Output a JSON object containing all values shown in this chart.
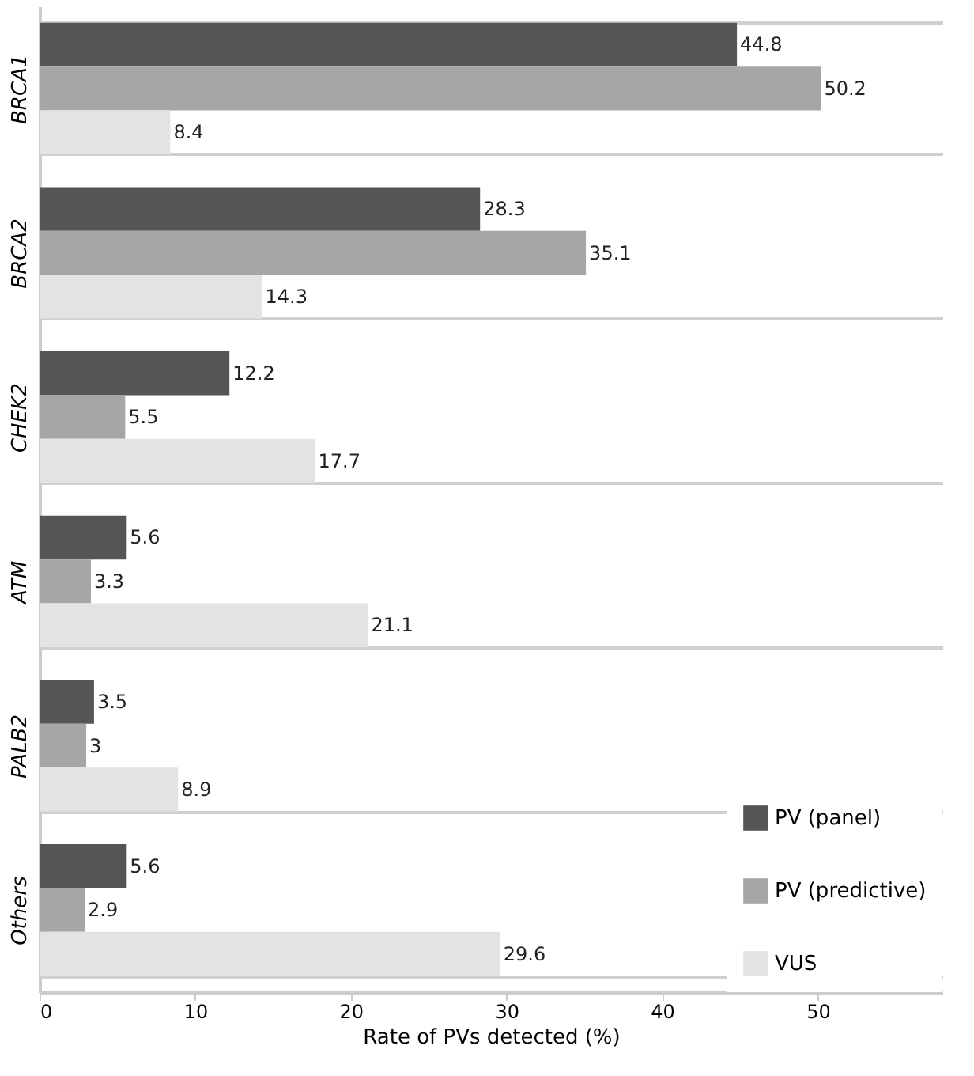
{
  "chart_data": {
    "type": "bar",
    "orientation": "horizontal",
    "xlabel": "Rate of PVs detected (%)",
    "categories": [
      "BRCA1",
      "BRCA2",
      "CHEK2",
      "ATM",
      "PALB2",
      "Others"
    ],
    "series": [
      {
        "name": "PV (panel)",
        "color": "#555555",
        "values": [
          44.8,
          28.3,
          12.2,
          5.6,
          3.5,
          5.6
        ]
      },
      {
        "name": "PV (predictive)",
        "color": "#a6a6a6",
        "values": [
          50.2,
          35.1,
          5.5,
          3.3,
          3,
          2.9
        ]
      },
      {
        "name": "VUS",
        "color": "#e3e3e3",
        "values": [
          8.4,
          14.3,
          17.7,
          21.1,
          8.9,
          29.6
        ]
      }
    ],
    "xlim": [
      0,
      58
    ],
    "xticks": [
      0,
      10,
      20,
      30,
      40,
      50
    ],
    "grid": "y",
    "legend": "bottom right",
    "data_labels": true
  }
}
